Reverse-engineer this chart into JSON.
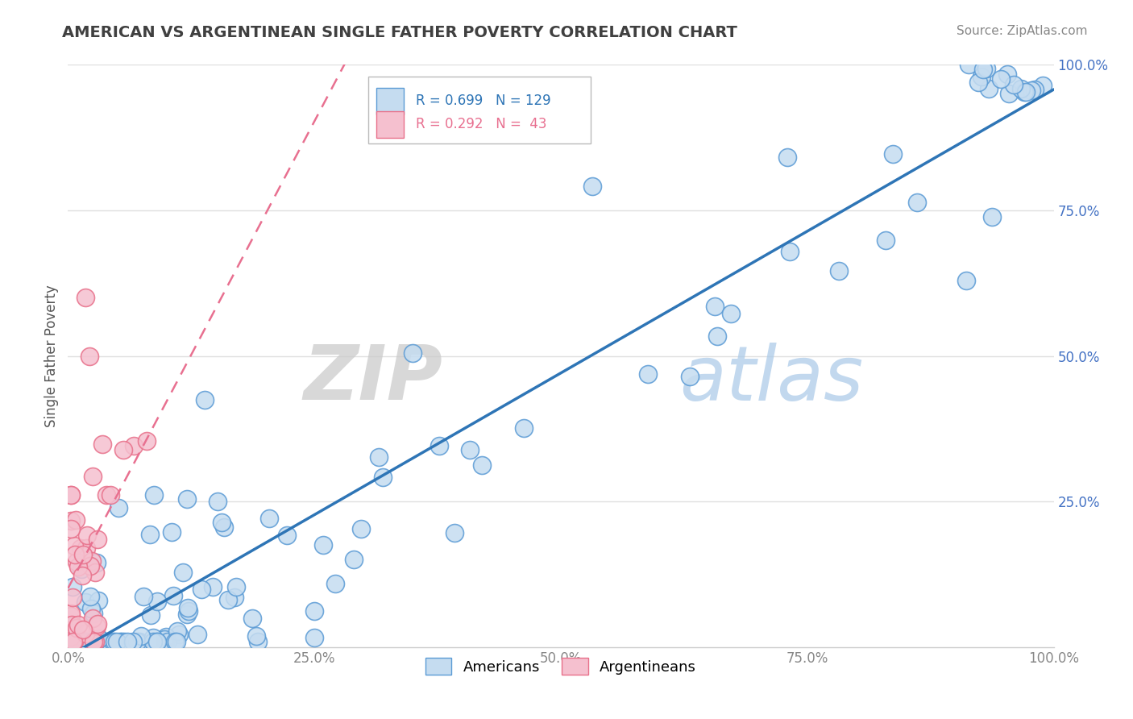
{
  "title": "AMERICAN VS ARGENTINEAN SINGLE FATHER POVERTY CORRELATION CHART",
  "source": "Source: ZipAtlas.com",
  "ylabel": "Single Father Poverty",
  "americans_color": "#c5dcf0",
  "americans_edge": "#5b9bd5",
  "argentineans_color": "#f5c0cf",
  "argentineans_edge": "#e8708a",
  "regression_american_color": "#2e75b6",
  "regression_argentinean_color": "#e87090",
  "R_american": 0.699,
  "N_american": 129,
  "R_argentinean": 0.292,
  "N_argentinean": 43,
  "watermark_zip": "ZIP",
  "watermark_atlas": "atlas",
  "background_color": "#ffffff",
  "grid_color": "#e0e0e0",
  "title_color": "#404040",
  "title_fontsize": 14,
  "source_fontsize": 11,
  "tick_color_x": "#888888",
  "tick_color_y": "#4472c4",
  "legend_border": "#bbbbbb"
}
